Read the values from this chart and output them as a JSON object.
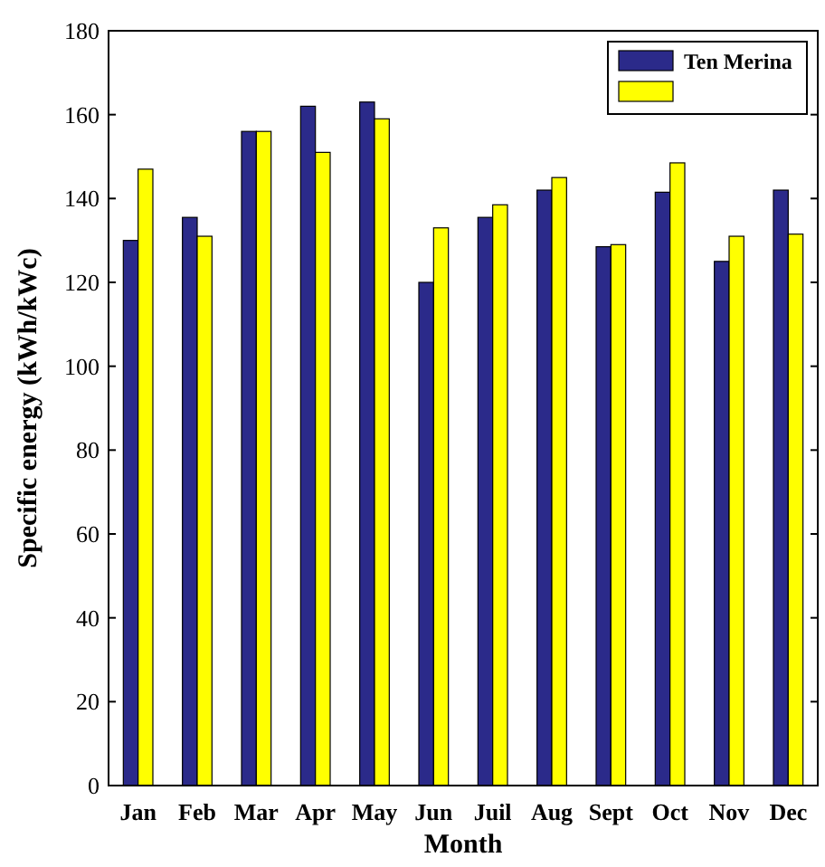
{
  "chart_data": {
    "type": "bar",
    "xlabel": "Month",
    "ylabel": "Specific energy (kWh/kWc)",
    "categories": [
      "Jan",
      "Feb",
      "Mar",
      "Apr",
      "May",
      "Jun",
      "Juil",
      "Aug",
      "Sept",
      "Oct",
      "Nov",
      "Dec"
    ],
    "series": [
      {
        "name": "Ten Merina",
        "color": "#2b2a8a",
        "values": [
          130,
          135.5,
          156,
          162,
          163,
          120,
          135.5,
          142,
          128.5,
          141.5,
          125,
          142
        ]
      },
      {
        "color": "#ffff00",
        "values": [
          147,
          131,
          156,
          151,
          159,
          133,
          138.5,
          145,
          129,
          148.5,
          131,
          131.5
        ]
      }
    ],
    "ylim": [
      0,
      180
    ],
    "yticks": [
      0,
      20,
      40,
      60,
      80,
      100,
      120,
      140,
      160,
      180
    ],
    "grid": false,
    "legend": "top right"
  }
}
